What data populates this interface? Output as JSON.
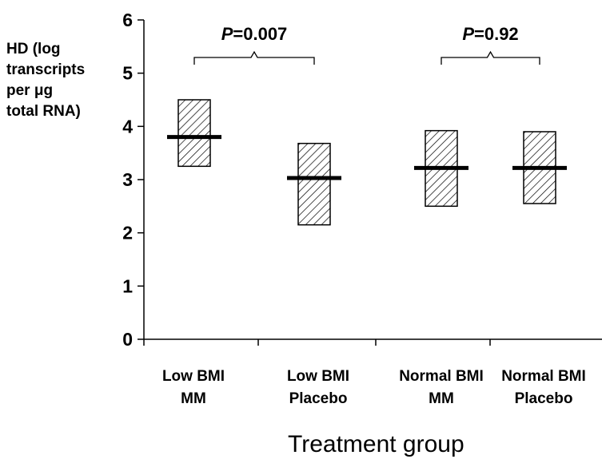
{
  "chart_data": {
    "type": "box",
    "ylabel_lines": [
      "HD (log",
      "transcripts",
      "per μg",
      "total RNA)"
    ],
    "xlabel": "Treatment group",
    "ylim": [
      0,
      6
    ],
    "yticks": [
      0,
      1,
      2,
      3,
      4,
      5,
      6
    ],
    "grid": false,
    "categories": [
      {
        "label_lines": [
          "Low BMI",
          "MM"
        ],
        "low": 3.25,
        "high": 4.5,
        "median": 3.8
      },
      {
        "label_lines": [
          "Low BMI",
          "Placebo"
        ],
        "low": 2.15,
        "high": 3.68,
        "median": 3.03
      },
      {
        "label_lines": [
          "Normal BMI",
          "MM"
        ],
        "low": 2.5,
        "high": 3.92,
        "median": 3.22
      },
      {
        "label_lines": [
          "Normal BMI",
          "Placebo"
        ],
        "low": 2.55,
        "high": 3.9,
        "median": 3.22
      }
    ],
    "comparisons": [
      {
        "groups": [
          0,
          1
        ],
        "p_label": "P",
        "p_value": "=0.007"
      },
      {
        "groups": [
          2,
          3
        ],
        "p_label": "P",
        "p_value": "=0.92"
      }
    ]
  }
}
